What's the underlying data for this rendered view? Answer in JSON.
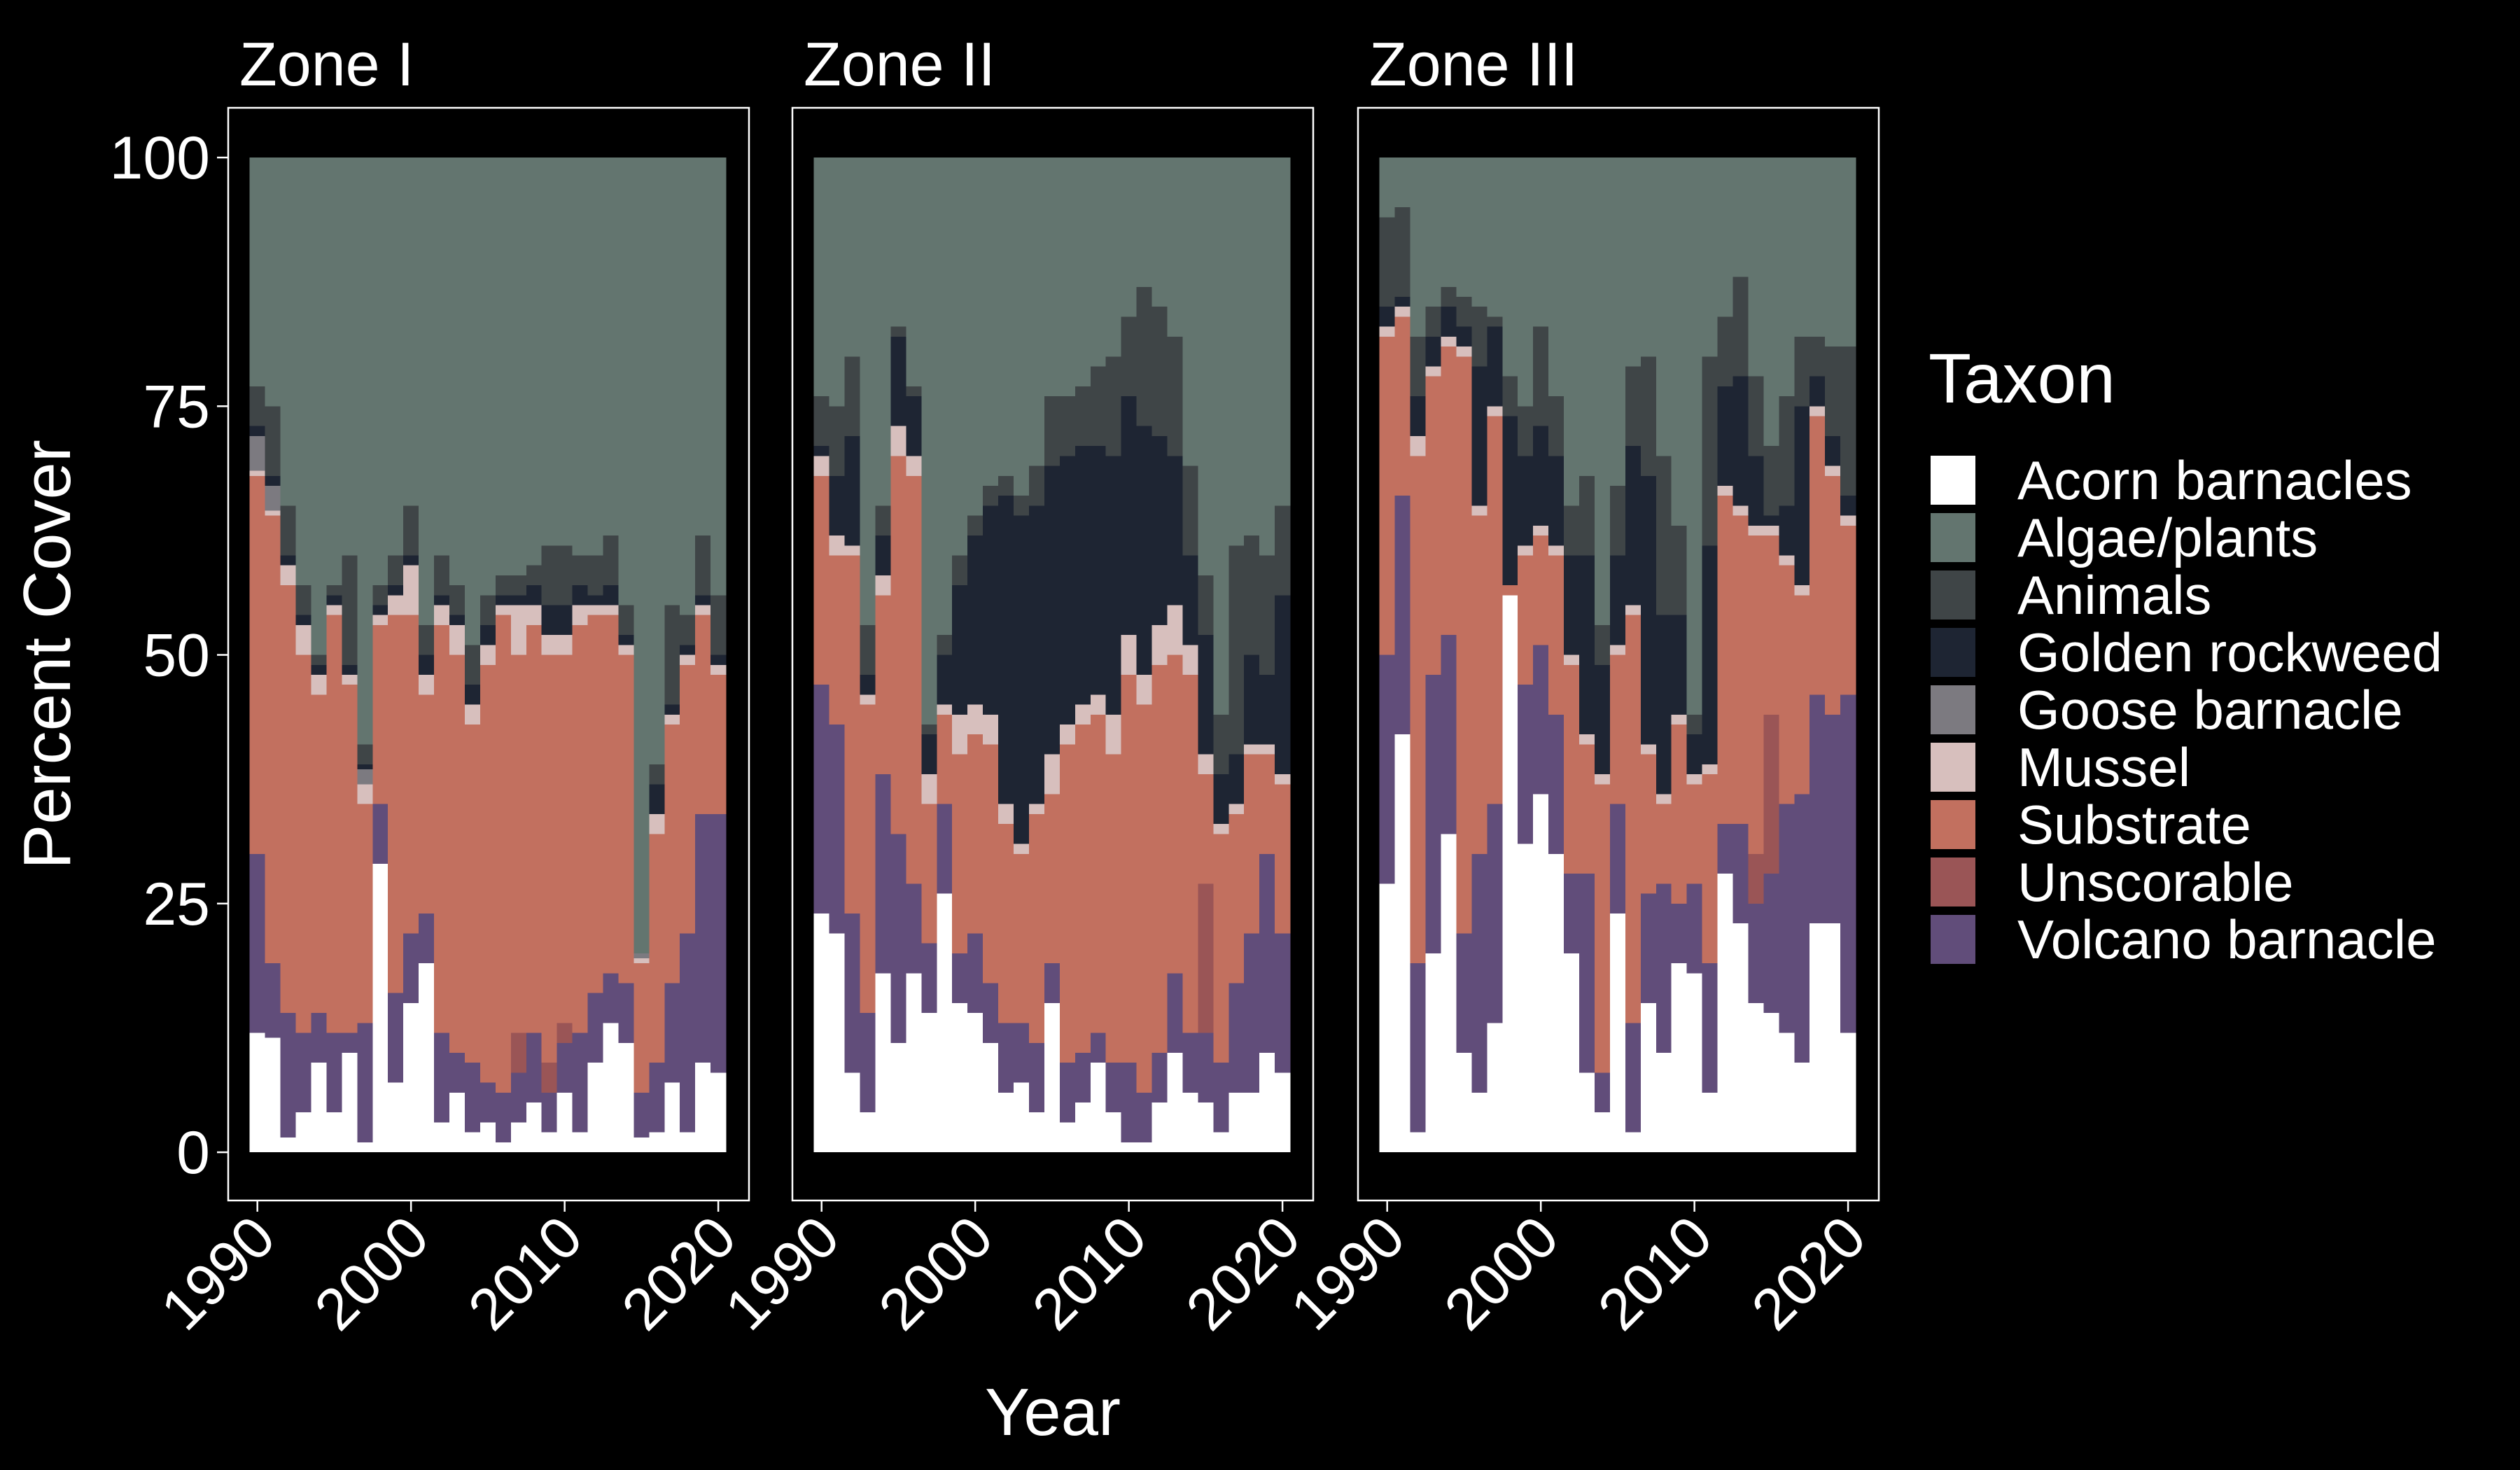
{
  "chart_data": {
    "type": "bar",
    "stacked": true,
    "x_label": "Year",
    "y_label": "Percent Cover",
    "legend_title": "Taxon",
    "x": [
      1990,
      1991,
      1992,
      1993,
      1994,
      1995,
      1996,
      1997,
      1998,
      1999,
      2000,
      2001,
      2002,
      2003,
      2004,
      2005,
      2006,
      2007,
      2008,
      2009,
      2010,
      2011,
      2012,
      2013,
      2014,
      2015,
      2016,
      2017,
      2018,
      2019,
      2020
    ],
    "xlim": [
      1988.1,
      2022.0
    ],
    "xticks": [
      1990,
      2000,
      2010,
      2020
    ],
    "ylim": [
      -4.85,
      105
    ],
    "yticks": [
      0,
      25,
      50,
      75,
      100
    ],
    "series": [
      {
        "name": "Acorn barnacles",
        "color": "#ffffff"
      },
      {
        "name": "Algae/plants",
        "color": "#63756f"
      },
      {
        "name": "Animals",
        "color": "#3f4547"
      },
      {
        "name": "Golden rockweed",
        "color": "#1e2533"
      },
      {
        "name": "Goose barnacle",
        "color": "#7c7a80"
      },
      {
        "name": "Mussel",
        "color": "#d7bfbd"
      },
      {
        "name": "Substrate",
        "color": "#c2705f"
      },
      {
        "name": "Unscorable",
        "color": "#9a5556"
      },
      {
        "name": "Volcano barnacle",
        "color": "#614d7a"
      }
    ],
    "panels": [
      {
        "title": "Zone I",
        "series": [
          {
            "values": [
              12,
              11.5,
              1.5,
              4,
              9,
              4,
              10,
              1,
              29,
              7,
              15,
              19,
              3,
              6,
              2,
              3,
              1,
              3,
              5,
              2,
              6,
              2,
              9,
              13,
              11,
              1.5,
              2,
              7,
              2,
              9,
              8
            ]
          },
          {
            "values": [
              23,
              25,
              35,
              43,
              50,
              43,
              40,
              59,
              43,
              40,
              35,
              47,
              40,
              43,
              49,
              44,
              42,
              42,
              41,
              39,
              39,
              40,
              40,
              38,
              45,
              80,
              61,
              45,
              46,
              38,
              44
            ]
          },
          {
            "values": [
              4,
              7,
              5,
              3,
              1,
              1,
              11,
              2,
              2,
              3,
              5,
              3,
              4,
              3,
              4,
              3,
              2,
              2,
              2,
              6,
              6,
              3,
              4,
              5,
              3,
              0,
              2,
              10,
              3,
              6,
              6
            ]
          },
          {
            "values": [
              1,
              1,
              1,
              1,
              1,
              1,
              1,
              0.5,
              1,
              1,
              1,
              2,
              1,
              1,
              2,
              2,
              1,
              1,
              2,
              3,
              3,
              2,
              1,
              2,
              1,
              0,
              3,
              1,
              1,
              1,
              1
            ]
          },
          {
            "values": [
              3.5,
              2.5,
              0,
              0,
              0,
              0,
              0,
              1.5,
              0,
              0,
              0,
              0,
              0,
              0,
              0,
              0,
              0,
              0,
              0,
              0,
              0,
              0,
              0,
              0,
              0,
              0.5,
              0,
              0,
              0,
              0,
              0
            ]
          },
          {
            "values": [
              0.5,
              0.5,
              2,
              3,
              2,
              1,
              1,
              2,
              1,
              2,
              5,
              2,
              2,
              3,
              2,
              2,
              1,
              5,
              2,
              2,
              2,
              2,
              1,
              1,
              1,
              0.5,
              2,
              1,
              1,
              1,
              1
            ]
          },
          {
            "values": [
              38,
              45,
              43,
              38,
              32,
              42,
              35,
              22,
              18,
              38,
              32,
              22,
              41,
              40,
              34,
              42,
              48,
              38,
              41,
              41,
              37,
              41,
              38,
              36,
              33,
              13,
              23,
              26,
              27,
              20,
              14
            ]
          },
          {
            "values": [
              0,
              0,
              0,
              0,
              0,
              0,
              0,
              0,
              0,
              0,
              0,
              0,
              0,
              0,
              0,
              0,
              0,
              4,
              0,
              3,
              2,
              0,
              0,
              0,
              0,
              0,
              0,
              0,
              0,
              0,
              0
            ]
          },
          {
            "values": [
              18,
              7.5,
              12.5,
              8,
              5,
              8,
              2,
              12,
              6,
              9,
              7,
              5,
              9,
              4,
              7,
              4,
              5,
              5,
              7,
              4,
              5,
              10,
              7,
              5,
              6,
              4.5,
              7,
              10,
              20,
              25,
              26
            ]
          }
        ]
      },
      {
        "title": "Zone II",
        "series": [
          {
            "values": [
              24,
              22,
              8,
              4,
              18,
              11,
              18,
              14,
              26,
              15,
              14,
              11,
              6,
              7,
              4,
              15,
              3,
              5,
              9,
              4,
              1,
              1,
              5,
              10,
              6,
              5,
              2,
              6,
              6,
              10,
              8
            ]
          },
          {
            "values": [
              24,
              25,
              20,
              47,
              35,
              17,
              23,
              57,
              48,
              40,
              36,
              33,
              32,
              34,
              31,
              24,
              24,
              23,
              21,
              20,
              16,
              13,
              15,
              18,
              31,
              42,
              56,
              39,
              38,
              40,
              35
            ]
          },
          {
            "values": [
              5,
              7,
              8,
              5,
              3,
              1,
              1,
              1,
              2,
              3,
              2,
              2,
              2,
              2,
              4,
              7,
              6,
              6,
              8,
              10,
              8,
              14,
              13,
              12,
              9,
              6,
              6,
              21,
              12,
              12,
              9
            ]
          },
          {
            "values": [
              1,
              6,
              11,
              2,
              4,
              9,
              6,
              4,
              5,
              13,
              17,
              21,
              31,
              33,
              30,
              29,
              27,
              26,
              25,
              26,
              24,
              25,
              19,
              15,
              9,
              12,
              5,
              5,
              9,
              7,
              18
            ]
          },
          {
            "values": [
              0,
              0,
              0,
              0,
              0,
              0,
              0,
              0,
              0,
              0,
              0,
              0,
              0,
              0,
              0,
              0,
              0,
              0,
              0,
              0,
              0,
              0,
              0,
              0,
              0,
              0,
              0,
              0,
              0,
              0,
              0
            ]
          },
          {
            "values": [
              2,
              2,
              1,
              1,
              2,
              3,
              2,
              3,
              1,
              4,
              3,
              3,
              2,
              1,
              1,
              4,
              2,
              2,
              2,
              4,
              4,
              3,
              4,
              5,
              3,
              2,
              1,
              1,
              1,
              1,
              1
            ]
          },
          {
            "values": [
              21,
              17,
              36,
              31,
              18,
              38,
              41,
              14,
              9,
              20,
              20,
              24,
              20,
              17,
              23,
              17,
              32,
              33,
              32,
              31,
              39,
              39,
              39,
              32,
              36,
              11,
              23,
              17,
              18,
              10,
              15
            ]
          },
          {
            "values": [
              0,
              0,
              0,
              0,
              0,
              0,
              0,
              0,
              0,
              0,
              0,
              0,
              0,
              0,
              0,
              0,
              0,
              0,
              0,
              0,
              0,
              0,
              0,
              0,
              0,
              15,
              0,
              0,
              0,
              0,
              0
            ]
          },
          {
            "values": [
              23,
              21,
              16,
              10,
              20,
              21,
              9,
              7,
              9,
              5,
              8,
              6,
              7,
              6,
              7,
              4,
              6,
              5,
              3,
              5,
              8,
              5,
              5,
              8,
              6,
              7,
              7,
              11,
              16,
              20,
              14
            ]
          }
        ]
      },
      {
        "title": "Zone III",
        "series": [
          {
            "values": [
              27,
              42,
              2,
              20,
              32,
              10,
              6,
              13,
              56,
              31,
              36,
              30,
              20,
              8,
              4,
              24,
              2,
              15,
              10,
              19,
              18,
              6,
              28,
              23,
              15,
              14,
              12,
              9,
              23,
              23,
              12
            ]
          },
          {
            "values": [
              6,
              5,
              18,
              15,
              13,
              14,
              15,
              16,
              22,
              25,
              17,
              24,
              35,
              32,
              47,
              33,
              21,
              20,
              30,
              37,
              56,
              20,
              16,
              12,
              22,
              29,
              24,
              18,
              18,
              19,
              19
            ]
          },
          {
            "values": [
              9,
              9,
              6,
              3,
              2,
              3,
              6,
              1,
              4,
              5,
              10,
              6,
              5,
              8,
              4,
              7,
              8,
              12,
              16,
              9,
              2,
              19,
              7,
              10,
              8,
              7,
              11,
              7,
              4,
              9,
              15
            ]
          },
          {
            "values": [
              2,
              1,
              4,
              3,
              3,
              2,
              14,
              8,
              17,
              9,
              10,
              9,
              10,
              18,
              11,
              9,
              16,
              27,
              18,
              10,
              4,
              22,
              10,
              13,
              7,
              1,
              5,
              18,
              3,
              3,
              2
            ]
          },
          {
            "values": [
              0,
              0,
              0,
              0,
              0,
              0,
              0,
              0,
              0,
              0,
              0,
              0,
              0,
              0,
              0,
              0,
              0,
              0,
              0,
              0,
              0,
              0,
              0,
              0,
              0,
              0,
              0,
              0,
              0,
              0,
              0
            ]
          },
          {
            "values": [
              1,
              1,
              2,
              1,
              1,
              1,
              1,
              1,
              0,
              1,
              1,
              1,
              1,
              1,
              1,
              1,
              1,
              1,
              1,
              1,
              1,
              1,
              1,
              1,
              1,
              1,
              1,
              1,
              1,
              1,
              1
            ]
          },
          {
            "values": [
              32,
              18,
              51,
              30,
              29,
              58,
              34,
              39,
              1,
              13,
              11,
              16,
              21,
              13,
              29,
              15,
              41,
              14,
              8,
              18,
              10,
              19,
              33,
              31,
              32,
              18,
              24,
              20,
              28,
              24,
              17
            ]
          },
          {
            "values": [
              0,
              0,
              0,
              0,
              0,
              0,
              0,
              0,
              0,
              0,
              0,
              0,
              0,
              0,
              0,
              0,
              0,
              0,
              0,
              0,
              0,
              0,
              0,
              0,
              5,
              16,
              0,
              0,
              0,
              0,
              0
            ]
          },
          {
            "values": [
              23,
              24,
              17,
              28,
              20,
              12,
              24,
              22,
              0,
              16,
              15,
              14,
              8,
              20,
              4,
              11,
              11,
              11,
              17,
              6,
              9,
              13,
              5,
              10,
              10,
              14,
              23,
              27,
              23,
              21,
              34
            ]
          }
        ]
      }
    ]
  }
}
